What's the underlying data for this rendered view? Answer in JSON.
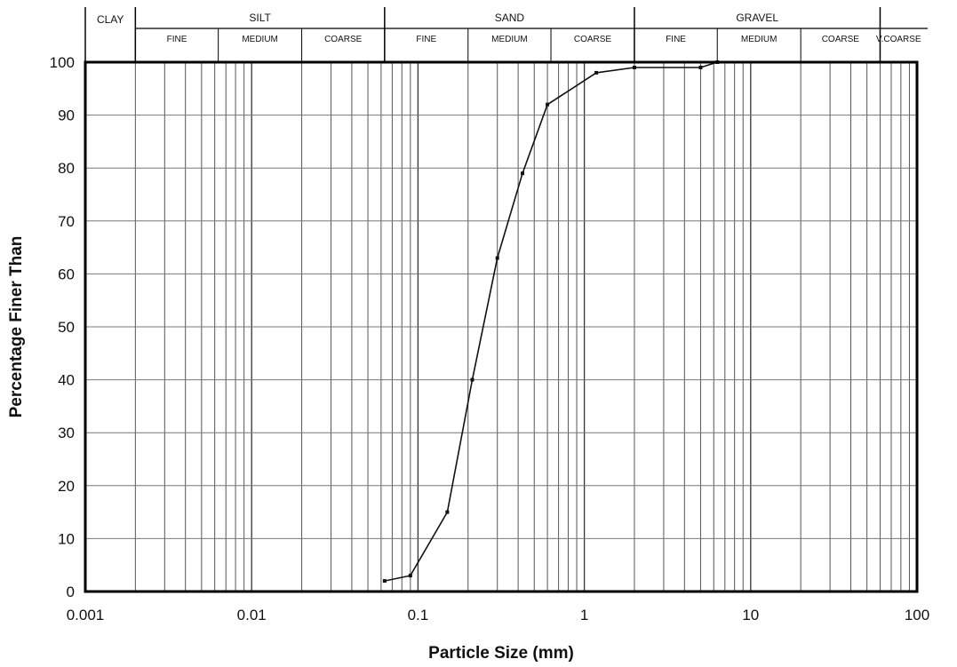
{
  "chart_data": {
    "type": "line",
    "title": "",
    "xlabel": "Particle Size (mm)",
    "ylabel": "Percentage Finer Than",
    "xscale": "log",
    "xlim": [
      0.001,
      100
    ],
    "ylim": [
      0,
      100
    ],
    "grid": true,
    "x_tick_labels": [
      "0.001",
      "0.01",
      "0.1",
      "1",
      "10",
      "100"
    ],
    "x_ticks": [
      0.001,
      0.01,
      0.1,
      1,
      10,
      100
    ],
    "y_ticks": [
      0,
      10,
      20,
      30,
      40,
      50,
      60,
      70,
      80,
      90,
      100
    ],
    "series": [
      {
        "x": [
          0.063,
          0.09,
          0.15,
          0.212,
          0.3,
          0.425,
          0.6,
          1.18,
          2.0,
          5.0,
          6.3
        ],
        "y": [
          2,
          3,
          15,
          40,
          63,
          79,
          92,
          98,
          99,
          99,
          100
        ]
      }
    ],
    "classification": {
      "bands": [
        {
          "label": "CLAY",
          "from": 0.001,
          "to": 0.002
        },
        {
          "label": "SILT",
          "from": 0.002,
          "to": 0.063
        },
        {
          "label": "SAND",
          "from": 0.063,
          "to": 2
        },
        {
          "label": "GRAVEL",
          "from": 2,
          "to": 60
        },
        {
          "label": "",
          "from": 60,
          "to": 100
        }
      ],
      "sub_bands": [
        {
          "label": "FINE",
          "from": 0.002,
          "to": 0.0063
        },
        {
          "label": "MEDIUM",
          "from": 0.0063,
          "to": 0.02
        },
        {
          "label": "COARSE",
          "from": 0.02,
          "to": 0.063
        },
        {
          "label": "FINE",
          "from": 0.063,
          "to": 0.2
        },
        {
          "label": "MEDIUM",
          "from": 0.2,
          "to": 0.63
        },
        {
          "label": "COARSE",
          "from": 0.63,
          "to": 2
        },
        {
          "label": "FINE",
          "from": 2,
          "to": 6.3
        },
        {
          "label": "MEDIUM",
          "from": 6.3,
          "to": 20
        },
        {
          "label": "COARSE",
          "from": 20,
          "to": 60
        },
        {
          "label": "V.COARSE",
          "from": 60,
          "to": 100
        }
      ]
    }
  }
}
